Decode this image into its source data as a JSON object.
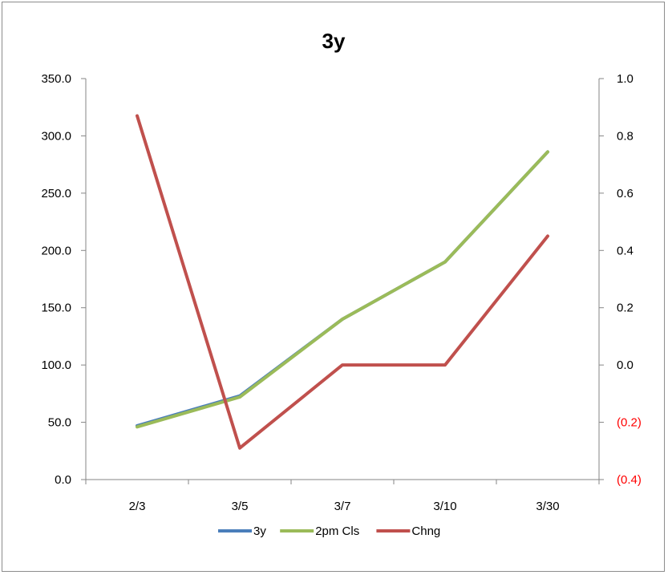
{
  "chart_data": {
    "type": "line",
    "title": "3y",
    "categories": [
      "2/3",
      "3/5",
      "3/7",
      "3/10",
      "3/30"
    ],
    "y_left": {
      "range": [
        0,
        350
      ],
      "ticks": [
        {
          "value": 0,
          "label": "0.0"
        },
        {
          "value": 50,
          "label": "50.0"
        },
        {
          "value": 100,
          "label": "100.0"
        },
        {
          "value": 150,
          "label": "150.0"
        },
        {
          "value": 200,
          "label": "200.0"
        },
        {
          "value": 250,
          "label": "250.0"
        },
        {
          "value": 300,
          "label": "300.0"
        },
        {
          "value": 350,
          "label": "350.0"
        }
      ]
    },
    "y_right": {
      "range": [
        -0.4,
        1.0
      ],
      "ticks": [
        {
          "value": -0.4,
          "label": "(0.4)",
          "color": "#ff0000"
        },
        {
          "value": -0.2,
          "label": "(0.2)",
          "color": "#ff0000"
        },
        {
          "value": 0.0,
          "label": "0.0",
          "color": "#000000"
        },
        {
          "value": 0.2,
          "label": "0.2",
          "color": "#000000"
        },
        {
          "value": 0.4,
          "label": "0.4",
          "color": "#000000"
        },
        {
          "value": 0.6,
          "label": "0.6",
          "color": "#000000"
        },
        {
          "value": 0.8,
          "label": "0.8",
          "color": "#000000"
        },
        {
          "value": 1.0,
          "label": "1.0",
          "color": "#000000"
        }
      ]
    },
    "series": [
      {
        "name": "3y",
        "axis": "left",
        "color": "#4a7ebb",
        "values": [
          47,
          73,
          140,
          190,
          286
        ]
      },
      {
        "name": "2pm Cls",
        "axis": "left",
        "color": "#9bbb59",
        "values": [
          46,
          72,
          140,
          190,
          286
        ]
      },
      {
        "name": "Chng",
        "axis": "right",
        "color": "#c0504d",
        "values": [
          0.87,
          -0.29,
          0.0,
          0.0,
          0.45
        ]
      }
    ],
    "legend_position": "bottom",
    "grid": false
  }
}
